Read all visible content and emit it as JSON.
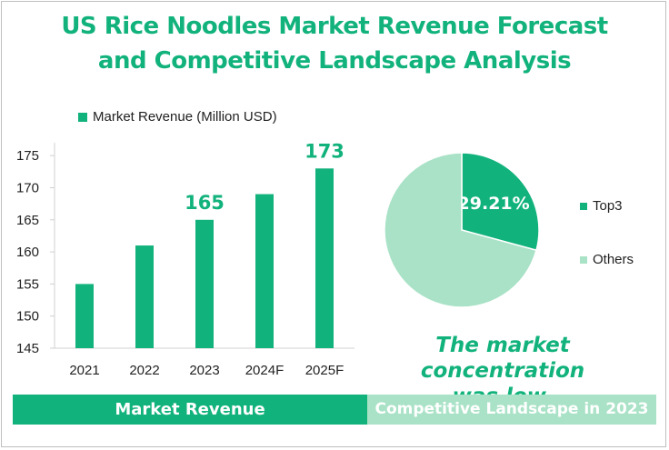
{
  "title_line1": "US Rice Noodles Market Revenue Forecast",
  "title_line2": "and Competitive Landscape Analysis",
  "colors": {
    "primary": "#12b27c",
    "light": "#a9e2c6",
    "axis_text": "#222222"
  },
  "chart_data": [
    {
      "type": "bar",
      "legend": "Market Revenue  (Million USD)",
      "categories": [
        "2021",
        "2022",
        "2023",
        "2024F",
        "2025F"
      ],
      "series": [
        {
          "name": "Market Revenue  (Million USD)",
          "values": [
            155,
            161,
            165,
            169,
            173
          ]
        }
      ],
      "data_labels": {
        "2023": "165",
        "2025F": "173"
      },
      "yticks": [
        145,
        150,
        155,
        160,
        165,
        170,
        175
      ],
      "ylim": [
        145,
        178
      ],
      "grid": false,
      "legend_placement": "top-left"
    },
    {
      "type": "pie",
      "slices": [
        {
          "label": "Top3",
          "value": 29.21,
          "display": "29.21%",
          "color": "#12b27c"
        },
        {
          "label": "Others",
          "value": 70.79,
          "color": "#a9e2c6"
        }
      ],
      "legend_placement": "right"
    }
  ],
  "note_line1": "The market concentration",
  "note_line2": "was low.",
  "bands": {
    "left": "Market Revenue",
    "right": "Competitive Landscape in 2023"
  }
}
